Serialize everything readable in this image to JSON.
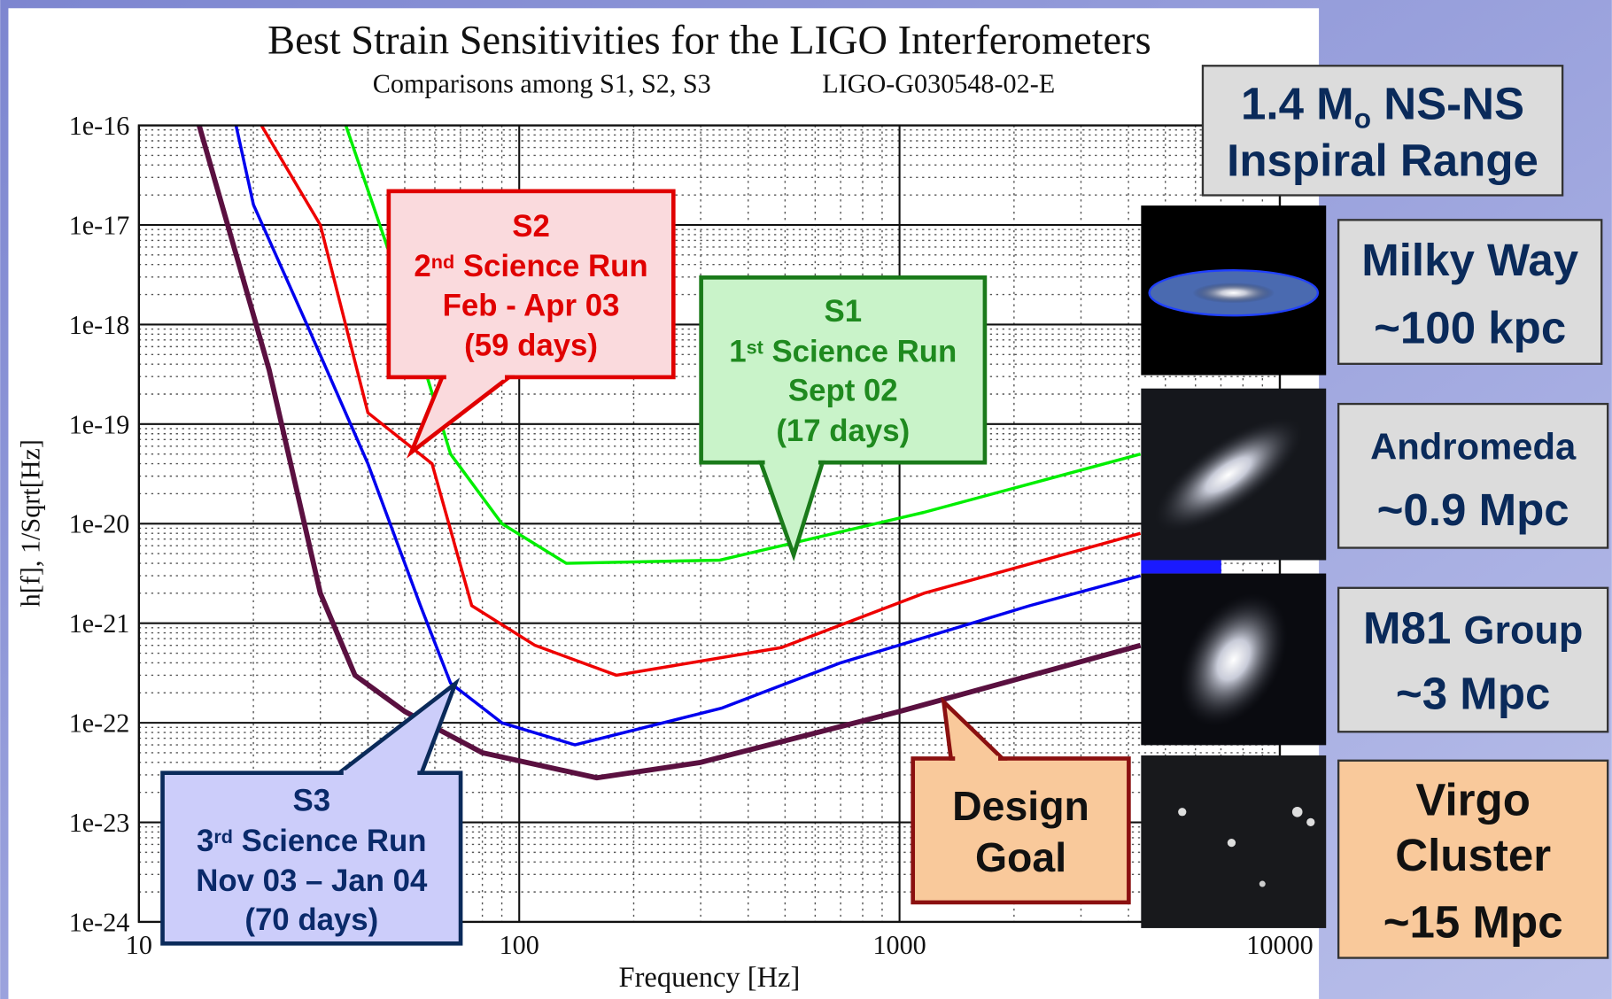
{
  "chart_data": {
    "type": "line",
    "title": "Best Strain Sensitivities for the LIGO Interferometers",
    "subtitle": "Comparisons among S1, S2, S3",
    "document_id": "LIGO-G030548-02-E",
    "xlabel": "Frequency [Hz]",
    "ylabel": "h[f], 1/Sqrt[Hz]",
    "xscale": "log",
    "yscale": "log",
    "xlim": [
      10,
      10000
    ],
    "ylim": [
      1e-24,
      1e-16
    ],
    "xticks": [
      10,
      100,
      1000,
      10000
    ],
    "yticks": [
      {
        "value": 1e-16,
        "label": "1e-16"
      },
      {
        "value": 1e-17,
        "label": "1e-17"
      },
      {
        "value": 1e-18,
        "label": "1e-18"
      },
      {
        "value": 1e-19,
        "label": "1e-19"
      },
      {
        "value": 1e-20,
        "label": "1e-20"
      },
      {
        "value": 1e-21,
        "label": "1e-21"
      },
      {
        "value": 1e-22,
        "label": "1e-22"
      },
      {
        "value": 1e-23,
        "label": "1e-23"
      },
      {
        "value": 1e-24,
        "label": "1e-24"
      }
    ],
    "grid": true,
    "minor_grid": true,
    "series": [
      {
        "color": "#00ee00",
        "x": [
          35,
          46,
          66,
          90,
          133,
          337,
          1160,
          4300
        ],
        "values": [
          1e-16,
          4.7e-18,
          5e-20,
          1e-20,
          4e-21,
          4.3e-21,
          1.3e-20,
          5e-20
        ]
      },
      {
        "color": "#ee0000",
        "x": [
          21,
          30,
          40,
          59,
          75,
          110,
          180,
          490,
          1160,
          4300
        ],
        "values": [
          1e-16,
          1e-17,
          1.3e-19,
          4e-20,
          1.5e-21,
          6e-22,
          3e-22,
          5.7e-22,
          2e-21,
          8e-21
        ]
      },
      {
        "color": "#0000ee",
        "x": [
          18,
          20,
          28,
          40,
          55,
          66,
          90,
          140,
          340,
          700,
          2200,
          4300
        ],
        "values": [
          1e-16,
          1.6e-17,
          9e-19,
          4e-20,
          1.5e-21,
          2.5e-22,
          1e-22,
          6e-23,
          1.4e-22,
          4e-22,
          1.5e-21,
          3e-21
        ]
      },
      {
        "color": "#5a1040",
        "x": [
          14.4,
          22,
          30,
          37,
          50,
          80,
          160,
          300,
          1000,
          4300
        ],
        "values": [
          1e-16,
          3.5e-19,
          2e-21,
          3e-22,
          1.3e-22,
          5e-23,
          2.8e-23,
          4e-23,
          1.3e-22,
          6e-22
        ]
      }
    ],
    "annotations": [
      {
        "lines": [
          [
            {
              "text": "S2"
            }
          ],
          [
            {
              "text": "2"
            },
            {
              "text": "nd",
              "style": "sup"
            },
            {
              "text": " Science Run"
            }
          ],
          [
            {
              "text": "Feb - Apr 03"
            }
          ],
          [
            {
              "text": "(59 days)"
            }
          ]
        ]
      },
      {
        "lines": [
          [
            {
              "text": "S1"
            }
          ],
          [
            {
              "text": "1"
            },
            {
              "text": "st",
              "style": "sup"
            },
            {
              "text": " Science Run"
            }
          ],
          [
            {
              "text": "Sept 02"
            }
          ],
          [
            {
              "text": "(17 days)"
            }
          ]
        ]
      },
      {
        "lines": [
          [
            {
              "text": "S3"
            }
          ],
          [
            {
              "text": "3"
            },
            {
              "text": "rd",
              "style": "sup"
            },
            {
              "text": " Science Run"
            }
          ],
          [
            {
              "text": "Nov 03 – Jan 04"
            }
          ],
          [
            {
              "text": "(70 days)"
            }
          ]
        ]
      },
      {
        "lines": [
          [
            {
              "text": "Design"
            }
          ],
          [
            {
              "text": "Goal"
            }
          ]
        ]
      }
    ]
  },
  "range_panel": {
    "heading": [
      [
        {
          "text": "1.4 M"
        },
        {
          "text": "o",
          "style": "sub"
        },
        {
          "text": " NS-NS"
        }
      ],
      [
        {
          "text": "Inspiral Range"
        }
      ]
    ],
    "items": [
      {
        "lines": [
          [
            {
              "text": "Milky Way"
            }
          ],
          [
            {
              "text": "~100 kpc"
            }
          ]
        ]
      },
      {
        "lines": [
          [
            {
              "text": "Andromeda"
            }
          ],
          [
            {
              "text": "~0.9 Mpc"
            }
          ]
        ]
      },
      {
        "lines": [
          [
            {
              "text": "M81 "
            },
            {
              "text": "Group",
              "style": "small"
            }
          ],
          [
            {
              "text": "~3 Mpc"
            }
          ]
        ]
      },
      {
        "lines": [
          [
            {
              "text": "Virgo"
            }
          ],
          [
            {
              "text": "Cluster"
            }
          ],
          [
            {
              "text": "~15 Mpc"
            }
          ]
        ]
      }
    ]
  }
}
